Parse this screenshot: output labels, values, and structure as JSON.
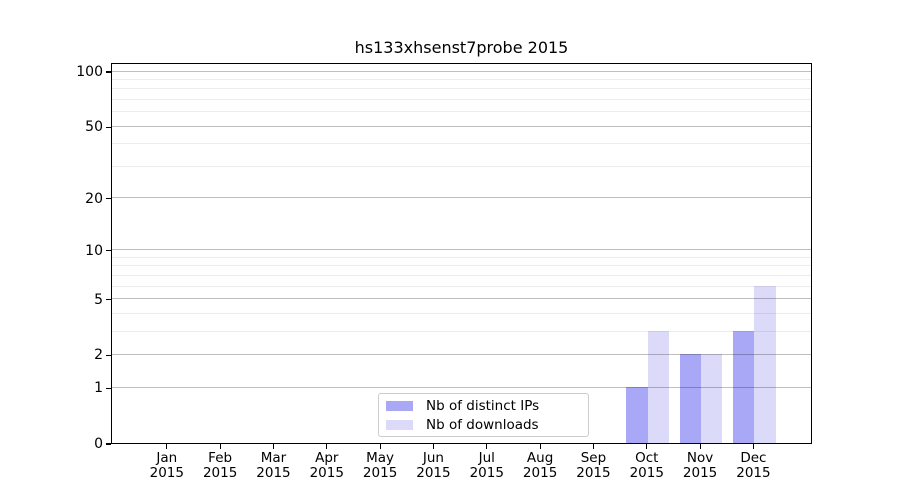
{
  "chart_data": {
    "type": "bar",
    "title": "hs133xhsenst7probe 2015",
    "categories": [
      "Jan",
      "Feb",
      "Mar",
      "Apr",
      "May",
      "Jun",
      "Jul",
      "Aug",
      "Sep",
      "Oct",
      "Nov",
      "Dec"
    ],
    "category_sublabel": "2015",
    "series": [
      {
        "name": "Nb of distinct IPs",
        "color": "#a8a8f6",
        "values": [
          0,
          0,
          0,
          0,
          0,
          0,
          0,
          0,
          0,
          1,
          2,
          3
        ]
      },
      {
        "name": "Nb of downloads",
        "color": "#dbdbf9",
        "values": [
          0,
          0,
          0,
          0,
          0,
          0,
          0,
          0,
          0,
          3,
          2,
          6
        ]
      }
    ],
    "yscale": "log1p",
    "ylim": [
      0,
      112
    ],
    "yticks": [
      0,
      1,
      2,
      5,
      10,
      20,
      50,
      100
    ],
    "minor_yticks": [
      3,
      4,
      6,
      7,
      8,
      9,
      30,
      40,
      60,
      70,
      80,
      90
    ],
    "grid": true,
    "grid_on_top": true,
    "legend_position": "lower-center",
    "colors": {
      "axis": "#000000",
      "major_grid": "#bfbfbf",
      "minor_grid": "#e9e9e9"
    }
  }
}
